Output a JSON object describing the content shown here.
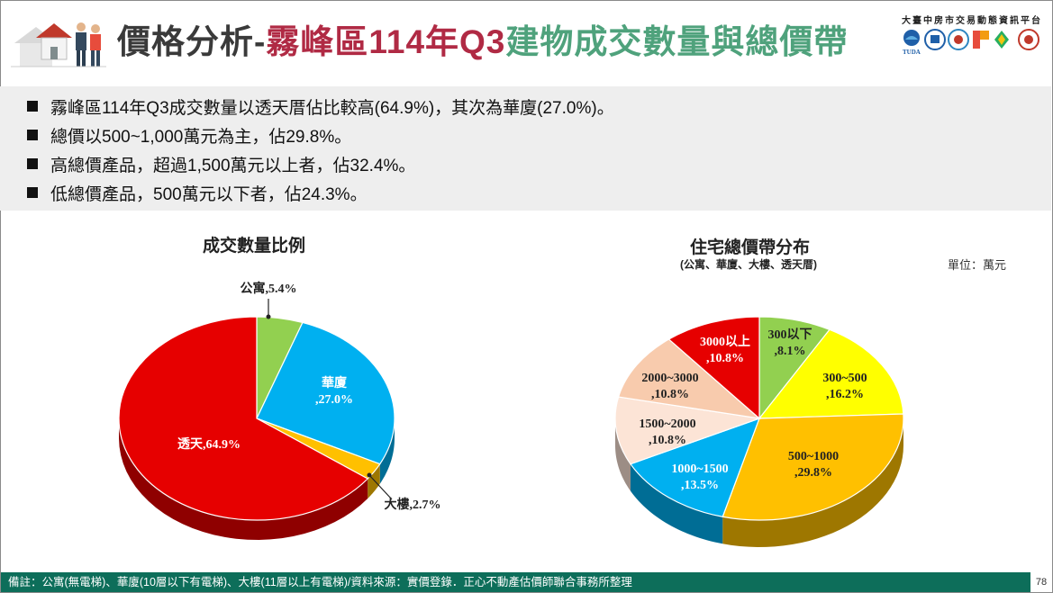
{
  "header": {
    "title_main": "價格分析-",
    "title_district": "霧峰區114年Q3",
    "title_topic": "建物成交數量與總價帶",
    "platform_name": "大臺中房市交易動態資訊平台",
    "logo_text_tuda": "TUDA"
  },
  "bullets": [
    "霧峰區114年Q3成交數量以透天厝佔比較高(64.9%)，其次為華廈(27.0%)。",
    "總價以500~1,000萬元為主，佔29.8%。",
    "高總價產品，超過1,500萬元以上者，佔32.4%。",
    "低總價產品，500萬元以下者，佔24.3%。"
  ],
  "chart_data": [
    {
      "type": "pie",
      "title": "成交數量比例",
      "slices": [
        {
          "label": "公寓",
          "value": 5.4,
          "display": "公寓,5.4%",
          "color": "#92d050"
        },
        {
          "label": "華廈",
          "value": 27.0,
          "display": "華廈\n,27.0%",
          "color": "#00b0f0"
        },
        {
          "label": "大樓",
          "value": 2.7,
          "display": "大樓,2.7%",
          "color": "#ffc000"
        },
        {
          "label": "透天",
          "value": 64.9,
          "display": "透天,64.9%",
          "color": "#e60000"
        }
      ]
    },
    {
      "type": "pie",
      "title": "住宅總價帶分布",
      "subtitle": "(公寓、華廈、大樓、透天厝)",
      "unit": "單位：萬元",
      "slices": [
        {
          "label": "300以下",
          "value": 8.1,
          "display": "300以下\n,8.1%",
          "color": "#92d050"
        },
        {
          "label": "300~500",
          "value": 16.2,
          "display": "300~500\n,16.2%",
          "color": "#ffff00"
        },
        {
          "label": "500~1000",
          "value": 29.8,
          "display": "500~1000\n,29.8%",
          "color": "#ffc000"
        },
        {
          "label": "1000~1500",
          "value": 13.5,
          "display": "1000~1500\n,13.5%",
          "color": "#00b0f0"
        },
        {
          "label": "1500~2000",
          "value": 10.8,
          "display": "1500~2000\n,10.8%",
          "color": "#fce4d6"
        },
        {
          "label": "2000~3000",
          "value": 10.8,
          "display": "2000~3000\n,10.8%",
          "color": "#f8cbad"
        },
        {
          "label": "3000以上",
          "value": 10.8,
          "display": "3000以上\n,10.8%",
          "color": "#e60000"
        }
      ]
    }
  ],
  "footer": {
    "note": "備註：公寓(無電梯)、華廈(10層以下有電梯)、大樓(11層以上有電梯)/資料來源：實價登錄．正心不動產估價師聯合事務所整理",
    "page_number": "78"
  }
}
